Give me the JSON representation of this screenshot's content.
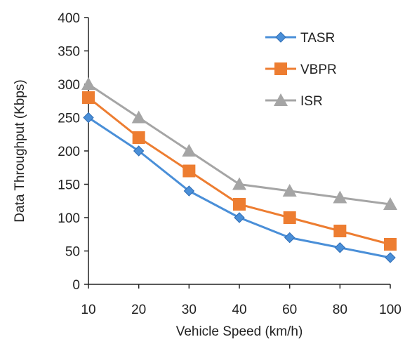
{
  "chart_data": {
    "type": "line",
    "title": "",
    "xlabel": "Vehicle Speed (km/h)",
    "ylabel": "Data Throughput (Kbps)",
    "categories": [
      "10",
      "20",
      "30",
      "40",
      "60",
      "80",
      "100"
    ],
    "ylim": [
      0,
      400
    ],
    "yticks": [
      0,
      50,
      100,
      150,
      200,
      250,
      300,
      350,
      400
    ],
    "grid": false,
    "legend_position": "top-right",
    "series": [
      {
        "name": "TASR",
        "values": [
          250,
          200,
          140,
          100,
          70,
          55,
          40
        ],
        "color": "#4a8fd8",
        "marker": "diamond"
      },
      {
        "name": "VBPR",
        "values": [
          280,
          220,
          170,
          120,
          100,
          80,
          60
        ],
        "color": "#ed7d31",
        "marker": "square"
      },
      {
        "name": "ISR",
        "values": [
          300,
          250,
          200,
          150,
          140,
          130,
          120
        ],
        "color": "#a5a5a5",
        "marker": "triangle"
      }
    ]
  }
}
